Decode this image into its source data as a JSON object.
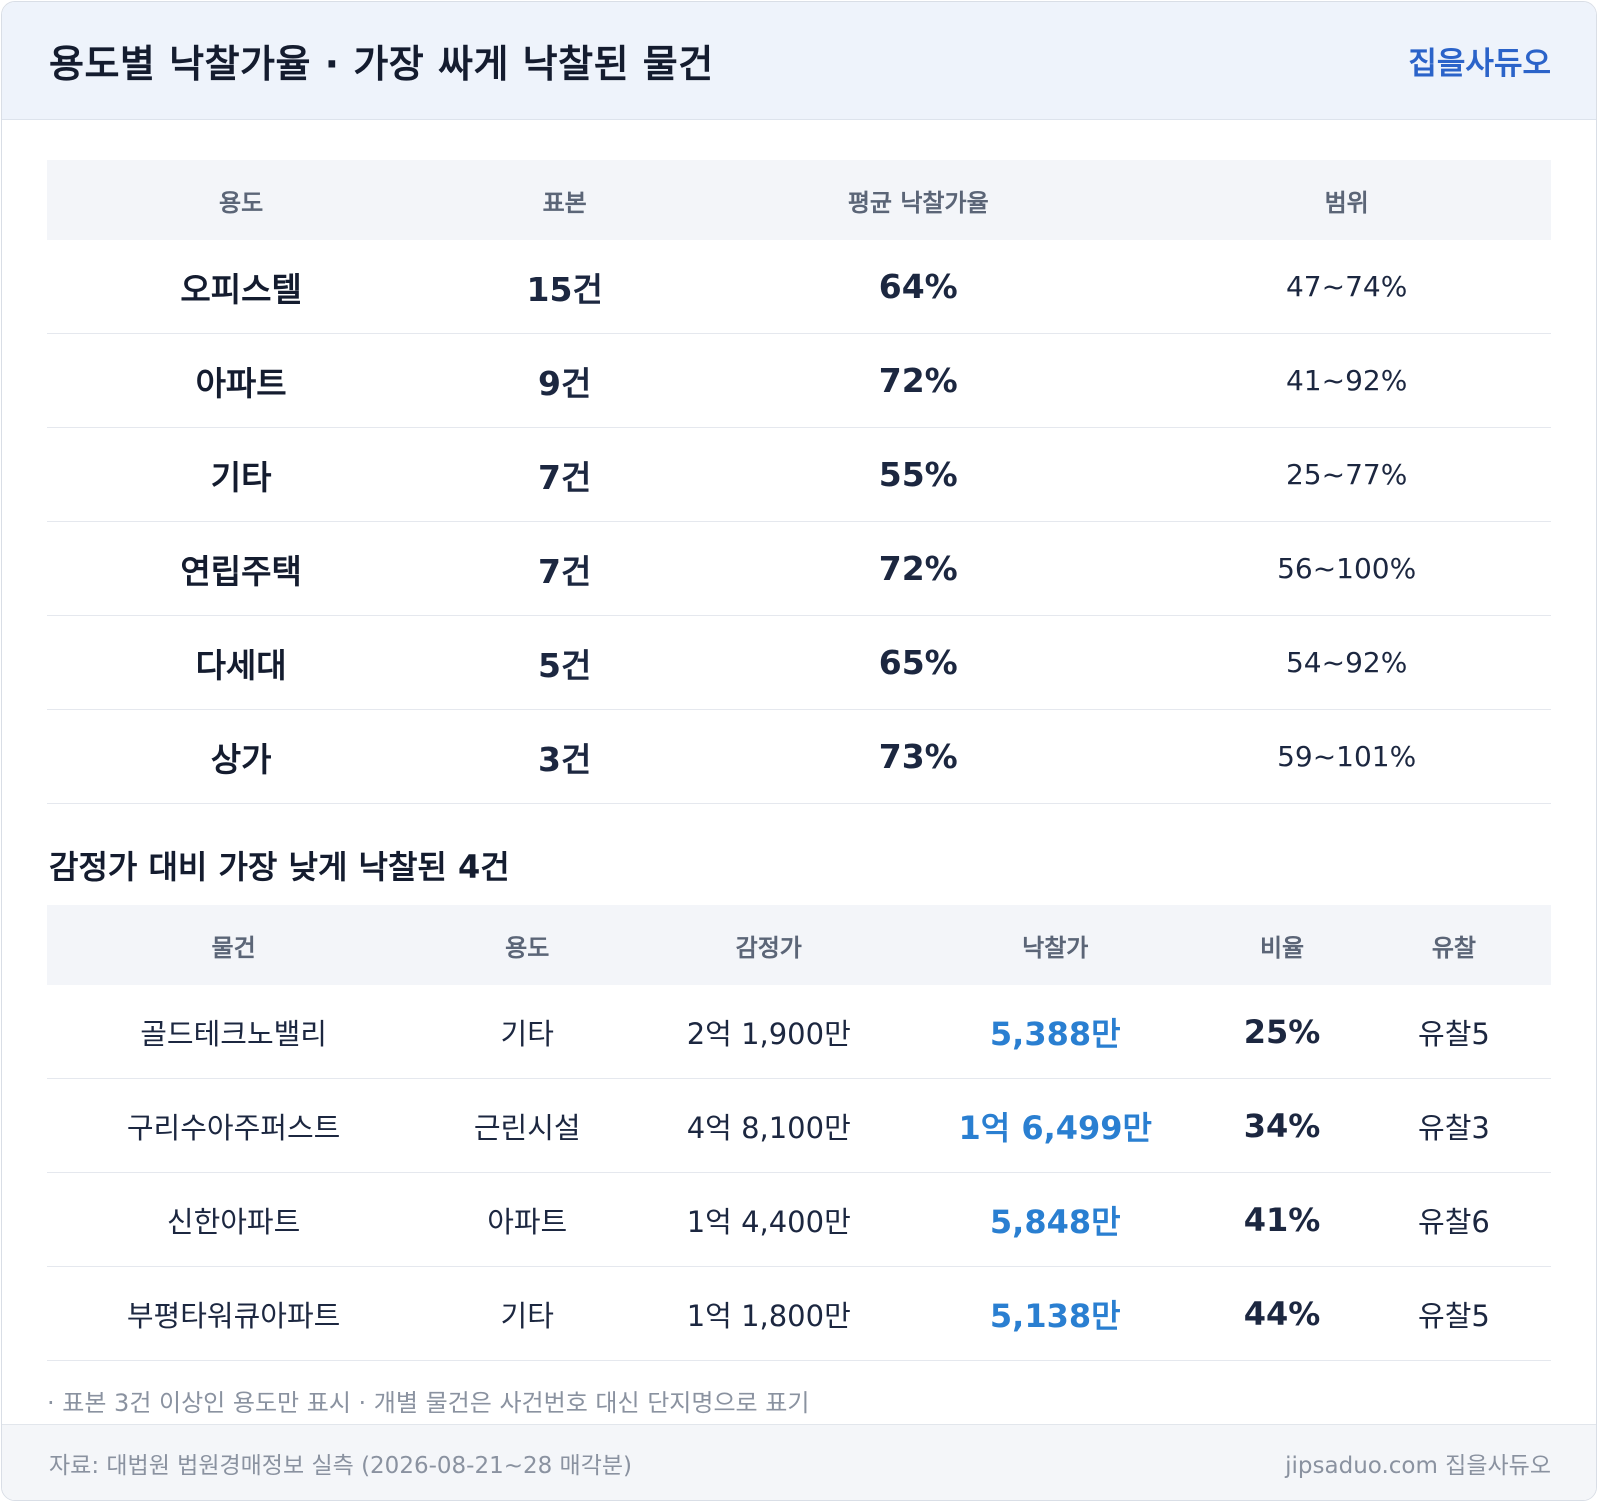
{
  "header": {
    "title": "용도별 낙찰가율 · 가장 싸게 낙찰된 물건",
    "brand": "집을사듀오"
  },
  "usage_table": {
    "columns": [
      "용도",
      "표본",
      "평균 낙찰가율",
      "범위"
    ],
    "rows": [
      {
        "usage": "오피스텔",
        "count": "15건",
        "avg": "64%",
        "range": "47~74%"
      },
      {
        "usage": "아파트",
        "count": "9건",
        "avg": "72%",
        "range": "41~92%"
      },
      {
        "usage": "기타",
        "count": "7건",
        "avg": "55%",
        "range": "25~77%"
      },
      {
        "usage": "연립주택",
        "count": "7건",
        "avg": "72%",
        "range": "56~100%"
      },
      {
        "usage": "다세대",
        "count": "5건",
        "avg": "65%",
        "range": "54~92%"
      },
      {
        "usage": "상가",
        "count": "3건",
        "avg": "73%",
        "range": "59~101%"
      }
    ]
  },
  "lowest_section": {
    "title": "감정가 대비 가장 낮게 낙찰된 4건",
    "columns": [
      "물건",
      "용도",
      "감정가",
      "낙찰가",
      "비율",
      "유찰"
    ],
    "rows": [
      {
        "name": "골드테크노밸리",
        "usage": "기타",
        "appraisal": "2억 1,900만",
        "bid": "5,388만",
        "rate": "25%",
        "fails": "유찰5"
      },
      {
        "name": "구리수아주퍼스트",
        "usage": "근린시설",
        "appraisal": "4억 8,100만",
        "bid": "1억 6,499만",
        "rate": "34%",
        "fails": "유찰3"
      },
      {
        "name": "신한아파트",
        "usage": "아파트",
        "appraisal": "1억 4,400만",
        "bid": "5,848만",
        "rate": "41%",
        "fails": "유찰6"
      },
      {
        "name": "부평타워큐아파트",
        "usage": "기타",
        "appraisal": "1억 1,800만",
        "bid": "5,138만",
        "rate": "44%",
        "fails": "유찰5"
      }
    ]
  },
  "note": "· 표본 3건 이상인 용도만 표시 · 개별 물건은 사건번호 대신 단지명으로 표기",
  "footer": {
    "source": "자료: 대법원 법원경매정보 실측 (2026-08-21~28 매각분)",
    "site": "jipsaduo.com 집을사듀오"
  },
  "colors": {
    "accent": "#2b63c9",
    "bid_price": "#2a7fd1",
    "header_bg": "#eef3fb"
  }
}
